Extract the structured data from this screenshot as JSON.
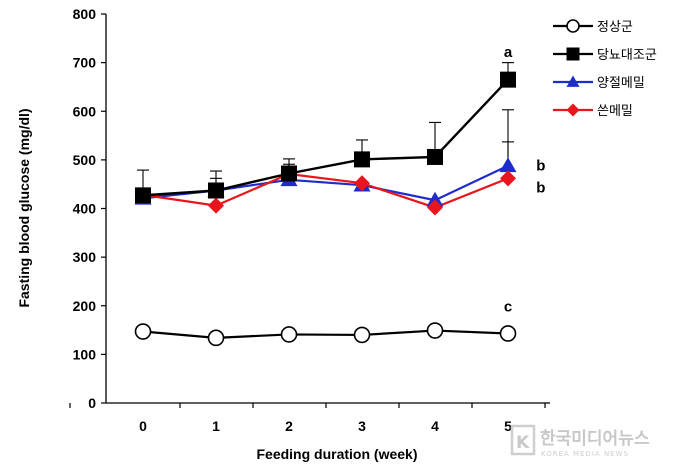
{
  "chart_data": {
    "type": "line",
    "title": "",
    "xlabel": "Feeding duration  (week)",
    "ylabel": "Fasting blood glucose  (mg/dl)",
    "x": [
      0,
      1,
      2,
      3,
      4,
      5
    ],
    "x_tick_labels": [
      "0",
      "1",
      "2",
      "3",
      "4",
      "5"
    ],
    "ylim": [
      0,
      800
    ],
    "y_ticks": [
      0,
      100,
      200,
      300,
      400,
      500,
      600,
      700,
      800
    ],
    "y_tick_labels": [
      "0",
      "100",
      "200",
      "300",
      "400",
      "500",
      "600",
      "700",
      "800"
    ],
    "grid": false,
    "legend_position": "top-right",
    "series": [
      {
        "name": "정상군",
        "color": "#000000",
        "line_color": "#000000",
        "marker": "open-circle",
        "values": [
          147,
          134,
          141,
          140,
          149,
          143
        ]
      },
      {
        "name": "당뇨대조군",
        "color": "#000000",
        "line_color": "#000000",
        "marker": "square",
        "values": [
          427,
          437,
          472,
          501,
          506,
          665
        ],
        "error_upper": [
          52,
          40,
          30,
          40,
          71,
          35
        ]
      },
      {
        "name": "양절메밀",
        "color": "#1f2ccc",
        "line_color": "#1f2ccc",
        "marker": "triangle",
        "values": [
          421,
          437,
          459,
          448,
          417,
          488
        ],
        "error_upper": [
          0,
          25,
          28,
          0,
          0,
          115
        ]
      },
      {
        "name": "쓴메밀",
        "color": "#e8161c",
        "line_color": "#e8161c",
        "marker": "diamond",
        "values": [
          428,
          406,
          471,
          452,
          402,
          462
        ],
        "error_upper": [
          0,
          0,
          20,
          0,
          0,
          75
        ]
      }
    ],
    "annotations": [
      {
        "text": "a",
        "x": 5,
        "y": 722
      },
      {
        "text": "b",
        "x": 5.45,
        "y": 488
      },
      {
        "text": "b",
        "x": 5.45,
        "y": 443
      },
      {
        "text": "c",
        "x": 5,
        "y": 198
      }
    ]
  },
  "watermark": {
    "text": "한국미디어뉴스",
    "sub": "KOREA MEDIA NEWS"
  }
}
